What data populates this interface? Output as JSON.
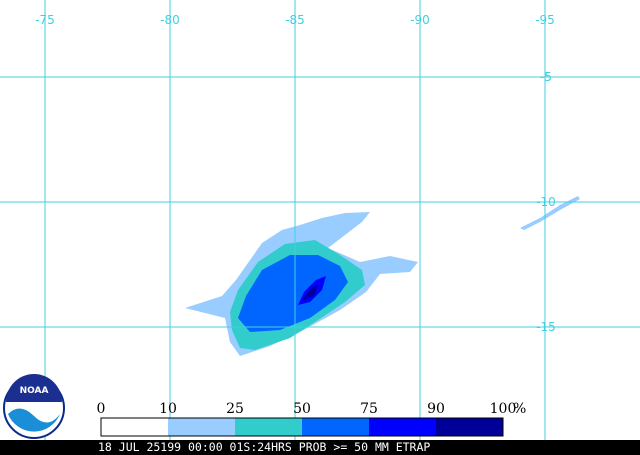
{
  "map": {
    "longitude_labels": [
      "-75",
      "-80",
      "-85",
      "-90",
      "-95"
    ],
    "latitude_labels": [
      "-5",
      "-10",
      "-15"
    ],
    "logo_text": "NOAA",
    "legend": {
      "labels": [
        "0",
        "10",
        "25",
        "50",
        "75",
        "90",
        "100"
      ],
      "unit": "%",
      "colors": [
        "#ffffff",
        "#99ccff",
        "#33cccc",
        "#0066ff",
        "#0000ff",
        "#000099"
      ]
    },
    "caption": "18 JUL 25199 00:00 01S:24HRS PROB >= 50 MM ETRAP"
  }
}
